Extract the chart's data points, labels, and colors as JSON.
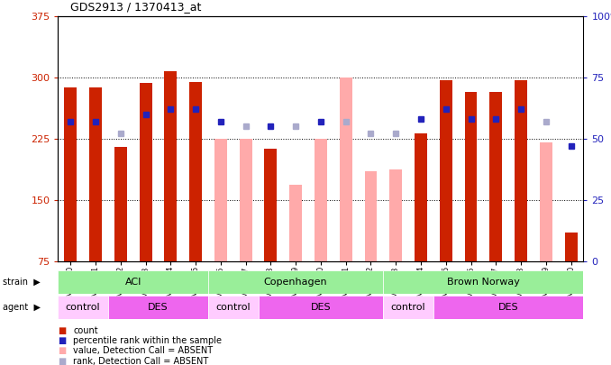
{
  "title": "GDS2913 / 1370413_at",
  "samples": [
    "GSM92200",
    "GSM92201",
    "GSM92202",
    "GSM92203",
    "GSM92204",
    "GSM92205",
    "GSM92206",
    "GSM92207",
    "GSM92208",
    "GSM92209",
    "GSM92210",
    "GSM92211",
    "GSM92212",
    "GSM92213",
    "GSM92214",
    "GSM92215",
    "GSM92216",
    "GSM92217",
    "GSM92218",
    "GSM92219",
    "GSM92220"
  ],
  "count_values": [
    288,
    288,
    215,
    293,
    308,
    295,
    null,
    null,
    213,
    null,
    null,
    null,
    null,
    null,
    232,
    297,
    282,
    282,
    297,
    null,
    110
  ],
  "count_absent": [
    null,
    null,
    null,
    null,
    null,
    null,
    225,
    225,
    null,
    168,
    225,
    300,
    185,
    187,
    null,
    null,
    null,
    null,
    null,
    220,
    null
  ],
  "rank_values": [
    57,
    57,
    null,
    60,
    62,
    62,
    57,
    null,
    55,
    null,
    57,
    null,
    null,
    null,
    58,
    62,
    58,
    58,
    62,
    null,
    47
  ],
  "rank_absent": [
    null,
    null,
    52,
    null,
    null,
    null,
    null,
    55,
    null,
    55,
    null,
    57,
    52,
    52,
    null,
    null,
    null,
    null,
    null,
    57,
    null
  ],
  "ylim_left": [
    75,
    375
  ],
  "ylim_right": [
    0,
    100
  ],
  "yticks_left": [
    75,
    150,
    225,
    300,
    375
  ],
  "yticks_right": [
    0,
    25,
    50,
    75,
    100
  ],
  "strain_groups": [
    {
      "label": "ACI",
      "start": 0,
      "end": 6,
      "color": "#99ee99"
    },
    {
      "label": "Copenhagen",
      "start": 6,
      "end": 13,
      "color": "#99ee99"
    },
    {
      "label": "Brown Norway",
      "start": 13,
      "end": 21,
      "color": "#99ee99"
    }
  ],
  "agent_groups": [
    {
      "label": "control",
      "start": 0,
      "end": 2,
      "color": "#ffccff"
    },
    {
      "label": "DES",
      "start": 2,
      "end": 6,
      "color": "#ee66ee"
    },
    {
      "label": "control",
      "start": 6,
      "end": 8,
      "color": "#ffccff"
    },
    {
      "label": "DES",
      "start": 8,
      "end": 13,
      "color": "#ee66ee"
    },
    {
      "label": "control",
      "start": 13,
      "end": 15,
      "color": "#ffccff"
    },
    {
      "label": "DES",
      "start": 15,
      "end": 21,
      "color": "#ee66ee"
    }
  ],
  "bar_width": 0.5,
  "count_color": "#cc2200",
  "count_absent_color": "#ffaaaa",
  "rank_color": "#2222bb",
  "rank_absent_color": "#aaaacc",
  "bg_color": "#ffffff",
  "left_label_color": "#cc2200",
  "right_label_color": "#2222bb"
}
